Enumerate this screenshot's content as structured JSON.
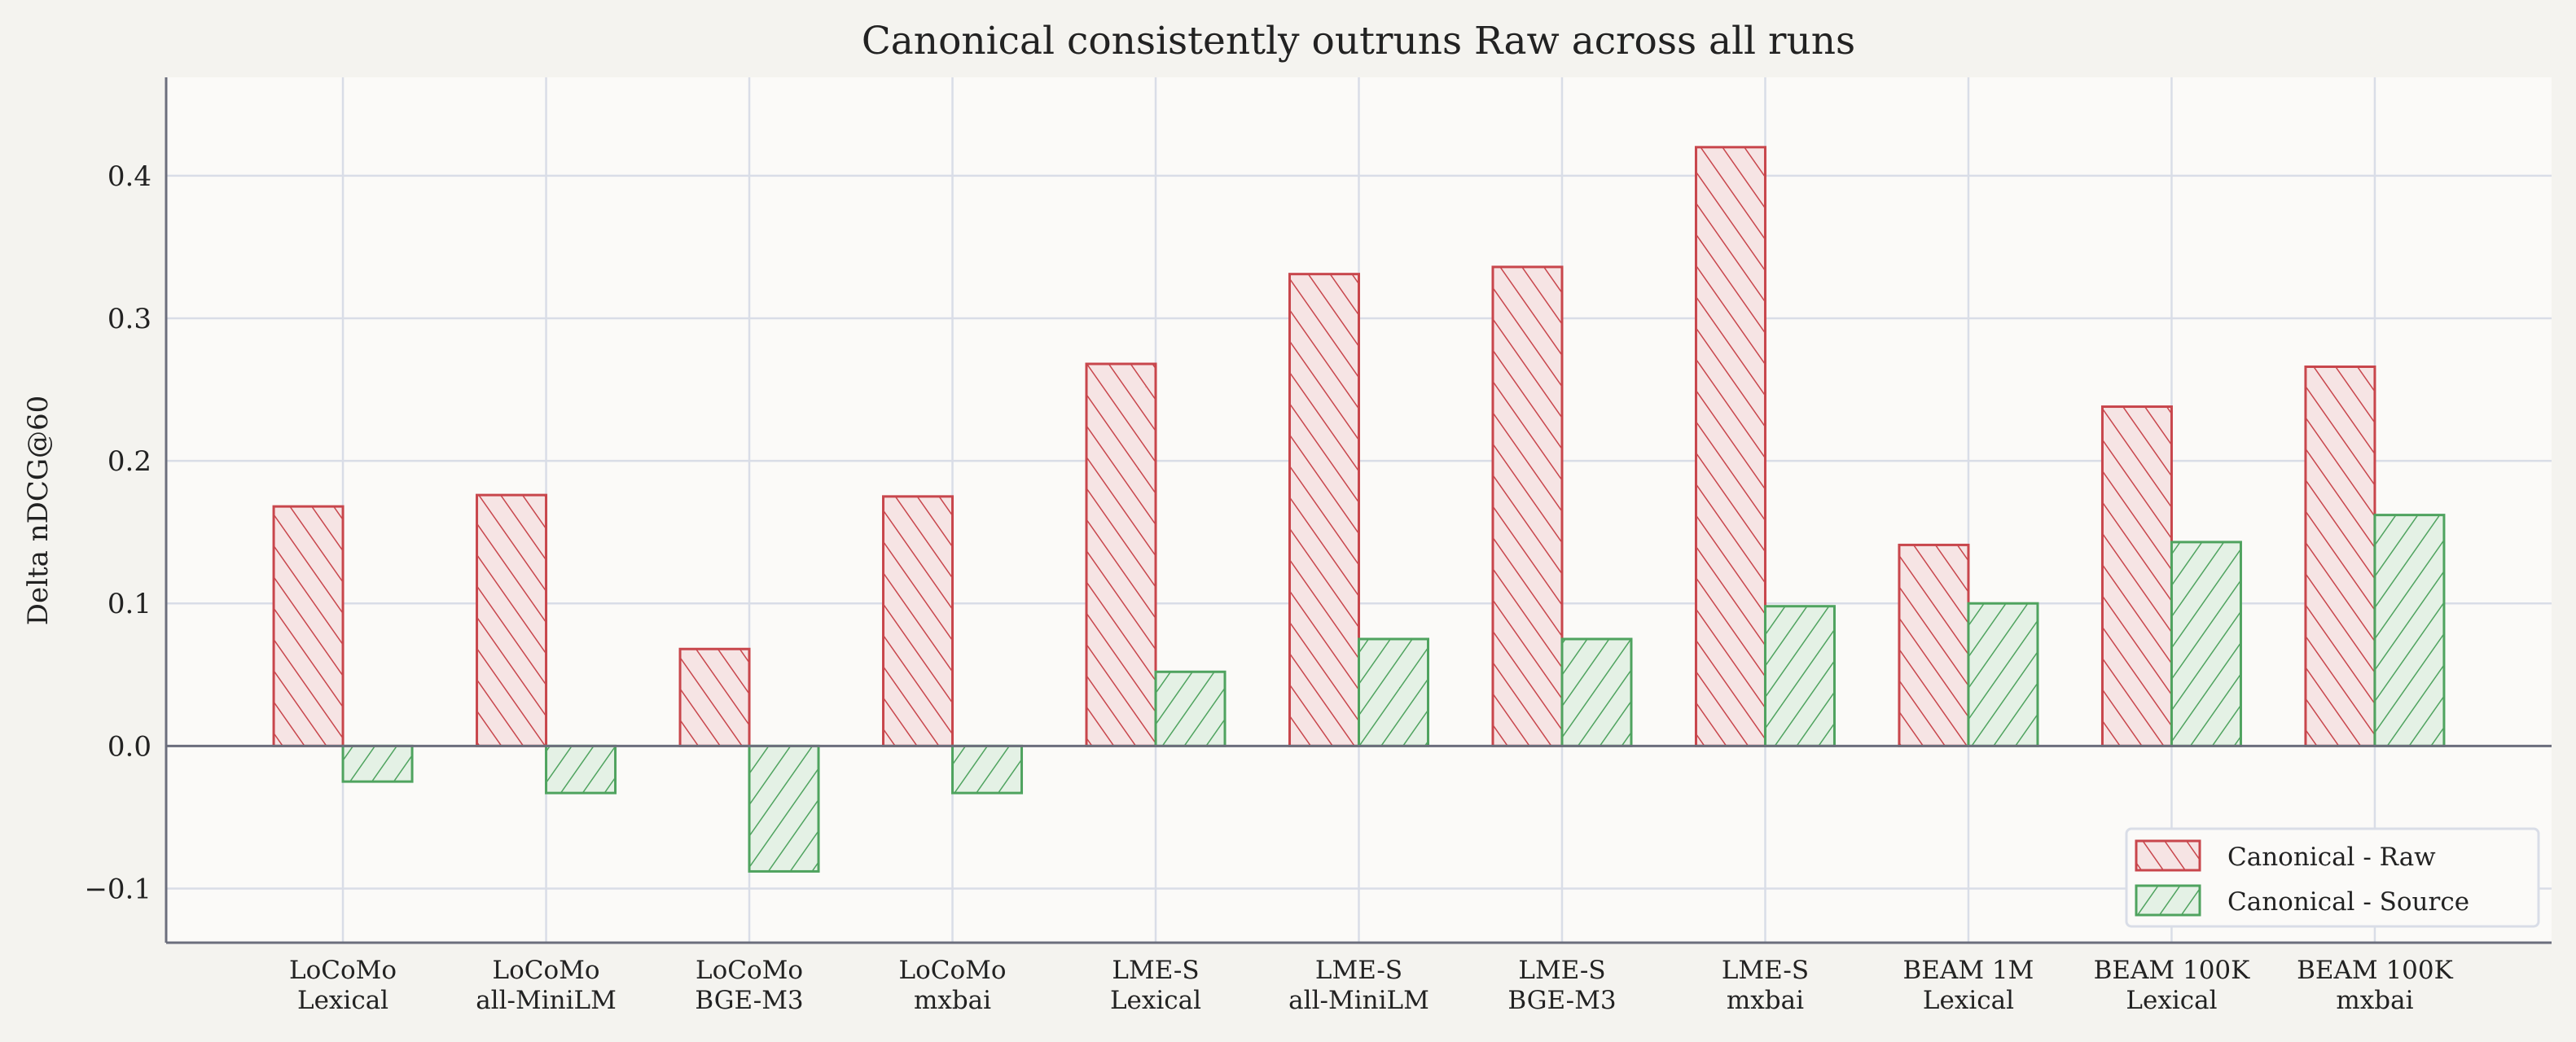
{
  "chart_data": {
    "type": "bar",
    "title": "Canonical consistently outruns Raw across all runs",
    "xlabel": "",
    "ylabel": "Delta nDCG@60",
    "categories": [
      [
        "LoCoMo",
        "Lexical"
      ],
      [
        "LoCoMo",
        "all-MiniLM"
      ],
      [
        "LoCoMo",
        "BGE-M3"
      ],
      [
        "LoCoMo",
        "mxbai"
      ],
      [
        "LME-S",
        "Lexical"
      ],
      [
        "LME-S",
        "all-MiniLM"
      ],
      [
        "LME-S",
        "BGE-M3"
      ],
      [
        "LME-S",
        "mxbai"
      ],
      [
        "BEAM 1M",
        "Lexical"
      ],
      [
        "BEAM 100K",
        "Lexical"
      ],
      [
        "BEAM 100K",
        "mxbai"
      ]
    ],
    "series": [
      {
        "name": "Canonical - Raw",
        "color": "#c8464c",
        "fill": "#f6e4e4",
        "hatch": "backslash",
        "values": [
          0.168,
          0.176,
          0.068,
          0.175,
          0.268,
          0.331,
          0.336,
          0.42,
          0.141,
          0.238,
          0.266
        ]
      },
      {
        "name": "Canonical - Source",
        "color": "#4fa35f",
        "fill": "#e4f1e5",
        "hatch": "slash",
        "values": [
          -0.025,
          -0.033,
          -0.088,
          -0.033,
          0.052,
          0.075,
          0.075,
          0.098,
          0.1,
          0.143,
          0.162
        ]
      }
    ],
    "ylim": [
      -0.138,
      0.469
    ],
    "yticks": [
      -0.1,
      0.0,
      0.1,
      0.2,
      0.3,
      0.4
    ],
    "ytick_labels": [
      "−0.1",
      "0.0",
      "0.1",
      "0.2",
      "0.3",
      "0.4"
    ],
    "grid": true,
    "legend": "bottom-right"
  }
}
